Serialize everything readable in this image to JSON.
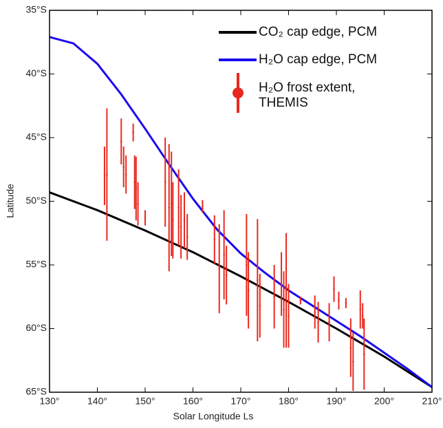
{
  "chart_data": {
    "type": "line-errorbar",
    "x_label": "Solar Longitude Ls",
    "y_label": "Latitude",
    "xlim": [
      130,
      210
    ],
    "xticks": [
      {
        "value": 130,
        "label": "130°"
      },
      {
        "value": 140,
        "label": "140°"
      },
      {
        "value": 150,
        "label": "150°"
      },
      {
        "value": 160,
        "label": "160°"
      },
      {
        "value": 170,
        "label": "170°"
      },
      {
        "value": 180,
        "label": "180°"
      },
      {
        "value": 190,
        "label": "190°"
      },
      {
        "value": 200,
        "label": "200°"
      },
      {
        "value": 210,
        "label": "210°"
      }
    ],
    "ylim": [
      -65,
      -35
    ],
    "yticks": [
      {
        "value": -35,
        "label": "35°S"
      },
      {
        "value": -40,
        "label": "40°S"
      },
      {
        "value": -45,
        "label": "45°S"
      },
      {
        "value": -50,
        "label": "50°S"
      },
      {
        "value": -55,
        "label": "55°S"
      },
      {
        "value": -60,
        "label": "60°S"
      },
      {
        "value": -65,
        "label": "65°S"
      }
    ],
    "legend": "upper right",
    "series": [
      {
        "name": "CO₂ cap edge, PCM",
        "kind": "line",
        "color": "#000000",
        "x": [
          130,
          140,
          150,
          160,
          170,
          180,
          190,
          200,
          210
        ],
        "values": [
          -49.3,
          -50.7,
          -52.3,
          -54.0,
          -55.9,
          -57.9,
          -60.0,
          -62.2,
          -64.6
        ]
      },
      {
        "name": "H₂O cap edge, PCM",
        "kind": "line",
        "color": "#1a0af0",
        "x": [
          130,
          135,
          140,
          145,
          150,
          155,
          160,
          165,
          170,
          175,
          180,
          185,
          190,
          195,
          200,
          205,
          210
        ],
        "values": [
          -37.1,
          -37.6,
          -39.2,
          -41.6,
          -44.3,
          -47.1,
          -49.8,
          -52.2,
          -54.1,
          -55.6,
          -57.0,
          -58.2,
          -59.4,
          -60.6,
          -61.9,
          -63.2,
          -64.6
        ]
      },
      {
        "name": "H₂O frost extent, THEMIS",
        "kind": "errorbar",
        "color": "#e8281e",
        "x": [
          141.5,
          142,
          145,
          145.5,
          146,
          147.5,
          147.8,
          148.1,
          148.5,
          150,
          154.2,
          155,
          155.5,
          155.8,
          157,
          157.5,
          158.2,
          158.8,
          162,
          164.5,
          165.5,
          166.5,
          167,
          171.2,
          171.6,
          173.5,
          174,
          177,
          178.5,
          179,
          179.5,
          180,
          182.5,
          185.5,
          186.2,
          188.5,
          189.5,
          190.5,
          192,
          193,
          193.5,
          195,
          195.5,
          195.8
        ],
        "values": [
          -48,
          -47.9,
          -45.3,
          -47.3,
          -47.9,
          -44.6,
          -48.5,
          -49.0,
          -50.2,
          -51.3,
          -48.5,
          -50.5,
          -50.2,
          -51.5,
          -50.5,
          -52.0,
          -51.5,
          -52.8,
          -50.4,
          -53,
          -55.3,
          -54.2,
          -55.8,
          -55,
          -57,
          -56.2,
          -58.2,
          -57.5,
          -56.5,
          -58.5,
          -57.0,
          -59,
          -57.8,
          -58.7,
          -59.5,
          -59.5,
          -56.9,
          -57.8,
          -58.0,
          -61.5,
          -62.6,
          -58.5,
          -59.0,
          -62
        ],
        "errors": [
          2.3,
          5.2,
          1.8,
          1.6,
          1.5,
          0.7,
          2.1,
          2.5,
          1.7,
          0.6,
          3.5,
          5.0,
          4.1,
          3.0,
          3.0,
          2.5,
          2.2,
          1.8,
          0.5,
          1.9,
          3.5,
          3.5,
          2.3,
          4.0,
          3.0,
          4.8,
          2.5,
          2.5,
          2.5,
          3.0,
          4.5,
          2.5,
          0.3,
          1.3,
          1.6,
          1.5,
          1.0,
          0.7,
          0.4,
          2.3,
          2.3,
          1.5,
          1.0,
          2.8
        ]
      }
    ]
  }
}
